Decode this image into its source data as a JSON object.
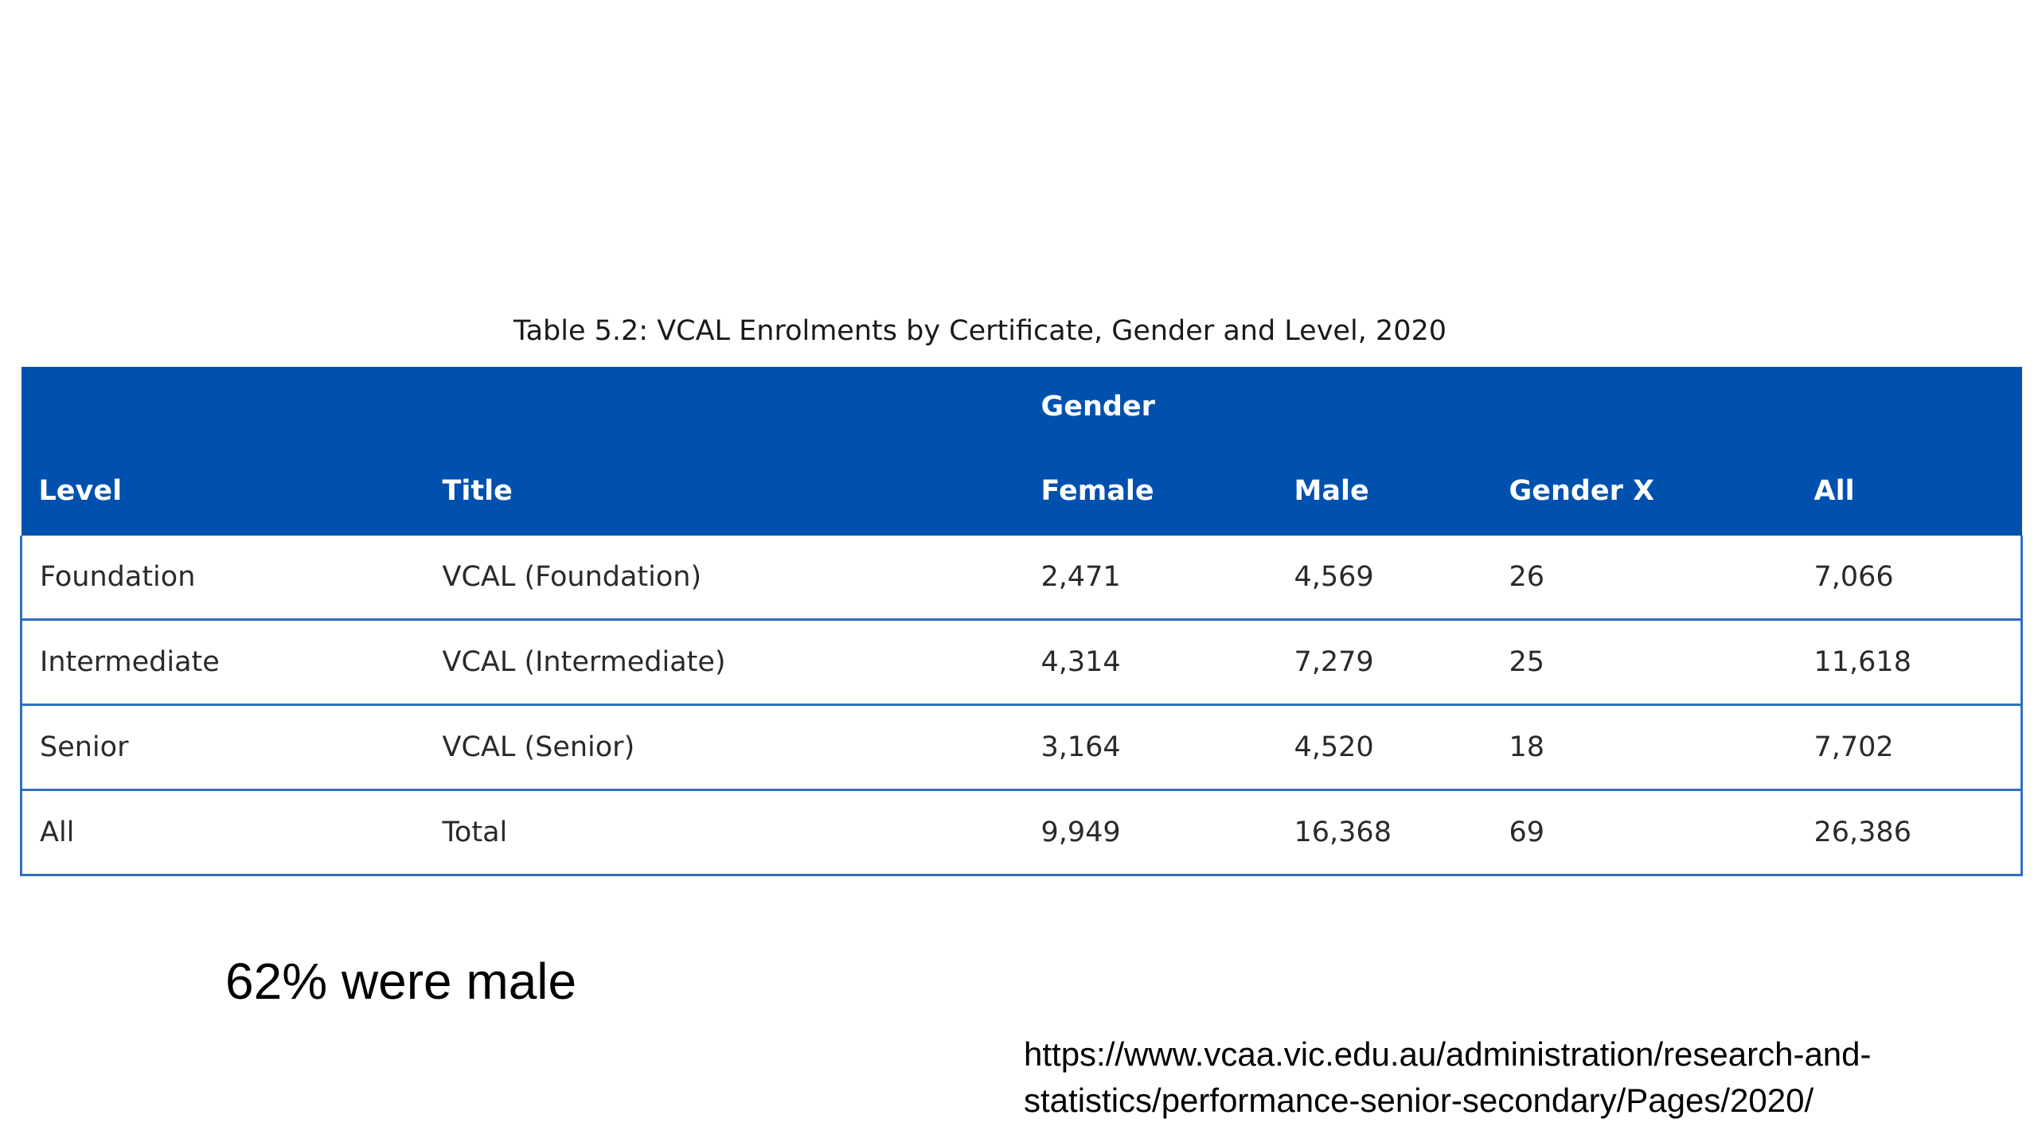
{
  "table": {
    "caption": "Table 5.2: VCAL Enrolments by Certificate, Gender and Level, 2020",
    "group_header": "Gender",
    "columns": [
      "Level",
      "Title",
      "Female",
      "Male",
      "Gender X",
      "All"
    ],
    "rows": [
      [
        "Foundation",
        "VCAL (Foundation)",
        "2,471",
        "4,569",
        "26",
        "7,066"
      ],
      [
        "Intermediate",
        "VCAL (Intermediate)",
        "4,314",
        "7,279",
        "25",
        "11,618"
      ],
      [
        "Senior",
        "VCAL (Senior)",
        "3,164",
        "4,520",
        "18",
        "7,702"
      ],
      [
        "All",
        "Total",
        "9,949",
        "16,368",
        "69",
        "26,386"
      ]
    ],
    "header_color": "#0051ad",
    "border_color": "#2f6fbf"
  },
  "note": "62% were male",
  "source": {
    "line1": "https://www.vcaa.vic.edu.au/administration/research-and-",
    "line2": "statistics/performance-senior-secondary/Pages/2020/"
  }
}
